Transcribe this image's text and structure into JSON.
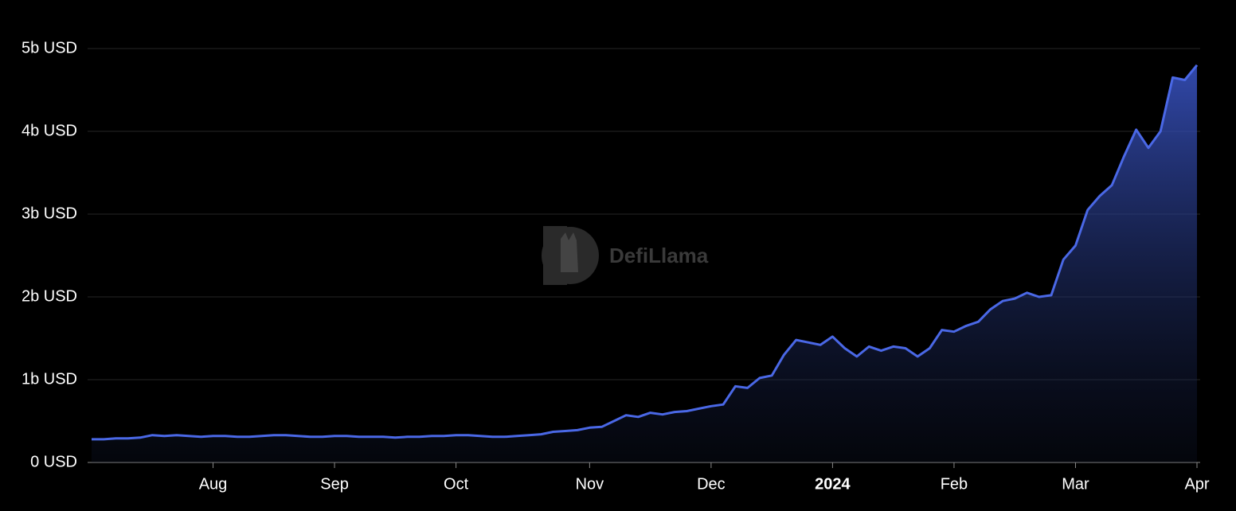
{
  "chart_data": {
    "type": "area",
    "watermark": "DefiLlama",
    "color": "#4a68e6",
    "ylim": [
      0,
      5
    ],
    "yticks": [
      {
        "value": 0,
        "label": "0 USD"
      },
      {
        "value": 1,
        "label": "1b USD"
      },
      {
        "value": 2,
        "label": "2b USD"
      },
      {
        "value": 3,
        "label": "3b USD"
      },
      {
        "value": 4,
        "label": "4b USD"
      },
      {
        "value": 5,
        "label": "5b USD"
      }
    ],
    "grid": true,
    "categories": [
      null,
      null,
      null,
      null,
      null,
      null,
      null,
      null,
      null,
      null,
      "Aug",
      null,
      null,
      null,
      null,
      null,
      null,
      null,
      null,
      null,
      "Sep",
      null,
      null,
      null,
      null,
      null,
      null,
      null,
      null,
      null,
      "Oct",
      null,
      null,
      null,
      null,
      null,
      null,
      null,
      null,
      null,
      null,
      "Nov",
      null,
      null,
      null,
      null,
      null,
      null,
      null,
      null,
      null,
      "Dec",
      null,
      null,
      null,
      null,
      null,
      null,
      null,
      null,
      null,
      "2024",
      null,
      null,
      null,
      null,
      null,
      null,
      null,
      null,
      null,
      "Feb",
      null,
      null,
      null,
      null,
      null,
      null,
      null,
      null,
      null,
      "Mar",
      null,
      null,
      null,
      null,
      null,
      null,
      null,
      null,
      null,
      "Apr"
    ],
    "values": [
      0.28,
      0.28,
      0.29,
      0.29,
      0.3,
      0.33,
      0.32,
      0.33,
      0.32,
      0.31,
      0.32,
      0.32,
      0.31,
      0.31,
      0.32,
      0.33,
      0.33,
      0.32,
      0.31,
      0.31,
      0.32,
      0.32,
      0.31,
      0.31,
      0.31,
      0.3,
      0.31,
      0.31,
      0.32,
      0.32,
      0.33,
      0.33,
      0.32,
      0.31,
      0.31,
      0.32,
      0.33,
      0.34,
      0.37,
      0.38,
      0.39,
      0.42,
      0.43,
      0.5,
      0.57,
      0.55,
      0.6,
      0.58,
      0.61,
      0.62,
      0.65,
      0.68,
      0.7,
      0.92,
      0.9,
      1.02,
      1.05,
      1.3,
      1.48,
      1.45,
      1.42,
      1.52,
      1.38,
      1.28,
      1.4,
      1.35,
      1.4,
      1.38,
      1.28,
      1.38,
      1.6,
      1.58,
      1.65,
      1.7,
      1.85,
      1.95,
      1.98,
      2.05,
      2.0,
      2.02,
      2.45,
      2.62,
      3.05,
      3.22,
      3.35,
      3.7,
      4.02,
      3.8,
      4.0,
      4.65,
      4.62,
      4.8
    ]
  }
}
